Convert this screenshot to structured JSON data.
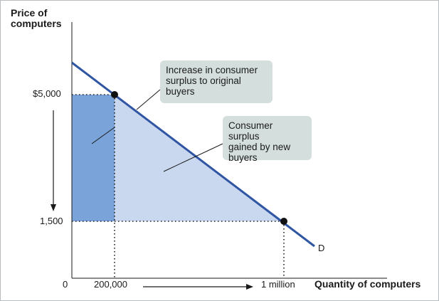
{
  "axes": {
    "y_title_line1": "Price of",
    "y_title_line2": "computers",
    "x_title": "Quantity of computers",
    "origin": "0"
  },
  "ticks": {
    "y_high": "$5,000",
    "y_low": "1,500",
    "x_low": "200,000",
    "x_high": "1 million"
  },
  "curve_label": "D",
  "callouts": {
    "original_buyers": {
      "line1": "Increase in consumer",
      "line2": "surplus to original",
      "line3": "buyers"
    },
    "new_buyers": {
      "line1": "Consumer surplus",
      "line2": "gained by new",
      "line3": "buyers"
    }
  },
  "colors": {
    "demand_line": "#2f55a3",
    "original_area": "#79a3d9",
    "new_area": "#c9d7ef",
    "callout_bg": "#d4dfdd",
    "frame_border": "#b7bcc0"
  }
}
